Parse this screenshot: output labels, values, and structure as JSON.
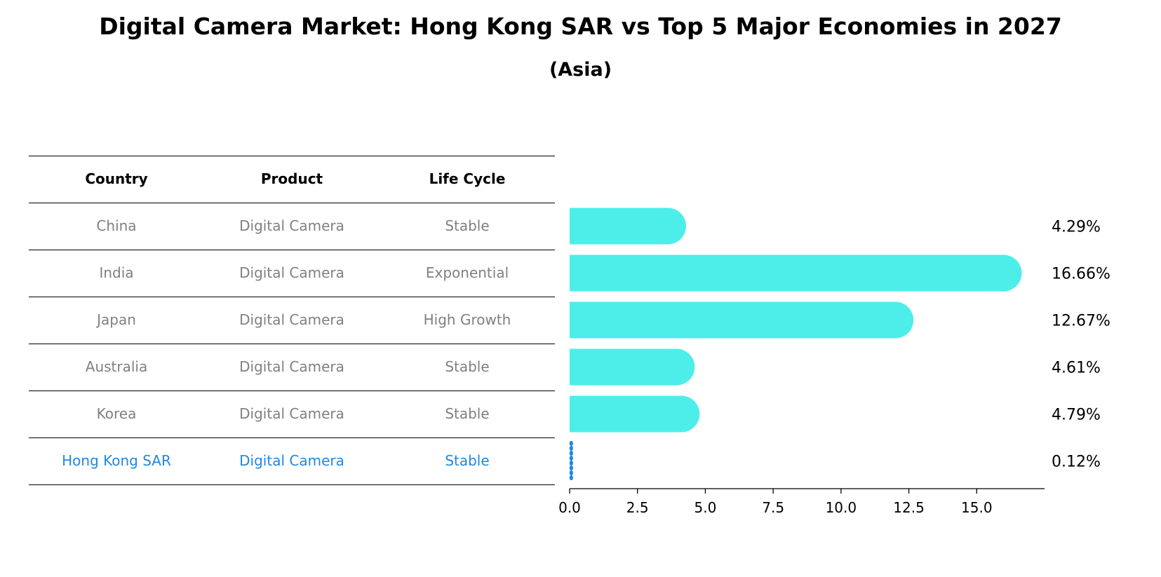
{
  "chart_data": {
    "type": "bar",
    "orientation": "horizontal",
    "title": "Digital Camera Market: Hong Kong SAR vs Top 5 Major Economies in 2027",
    "subtitle": "(Asia)",
    "table": {
      "headers": [
        "Country",
        "Product",
        "Life Cycle"
      ],
      "rows": [
        {
          "country": "China",
          "product": "Digital Camera",
          "life_cycle": "Stable"
        },
        {
          "country": "India",
          "product": "Digital Camera",
          "life_cycle": "Exponential"
        },
        {
          "country": "Japan",
          "product": "Digital Camera",
          "life_cycle": "High Growth"
        },
        {
          "country": "Australia",
          "product": "Digital Camera",
          "life_cycle": "Stable"
        },
        {
          "country": "Korea",
          "product": "Digital Camera",
          "life_cycle": "Stable"
        },
        {
          "country": "Hong Kong SAR",
          "product": "Digital Camera",
          "life_cycle": "Stable"
        }
      ]
    },
    "categories": [
      "China",
      "India",
      "Japan",
      "Australia",
      "Korea",
      "Hong Kong SAR"
    ],
    "values": [
      4.29,
      16.66,
      12.67,
      4.61,
      4.79,
      0.12
    ],
    "value_labels": [
      "4.29%",
      "16.66%",
      "12.67%",
      "4.61%",
      "4.79%",
      "0.12%"
    ],
    "highlight_index": 5,
    "xlim": [
      0,
      17.5
    ],
    "xticks": [
      0.0,
      2.5,
      5.0,
      7.5,
      10.0,
      12.5,
      15.0
    ],
    "xtick_labels": [
      "0.0",
      "2.5",
      "5.0",
      "7.5",
      "10.0",
      "12.5",
      "15.0"
    ],
    "colors": {
      "bar": "#4deeea",
      "highlight": "#1e88e5",
      "muted_text": "#808080",
      "text": "#000000"
    },
    "grid": false,
    "legend": "none"
  }
}
